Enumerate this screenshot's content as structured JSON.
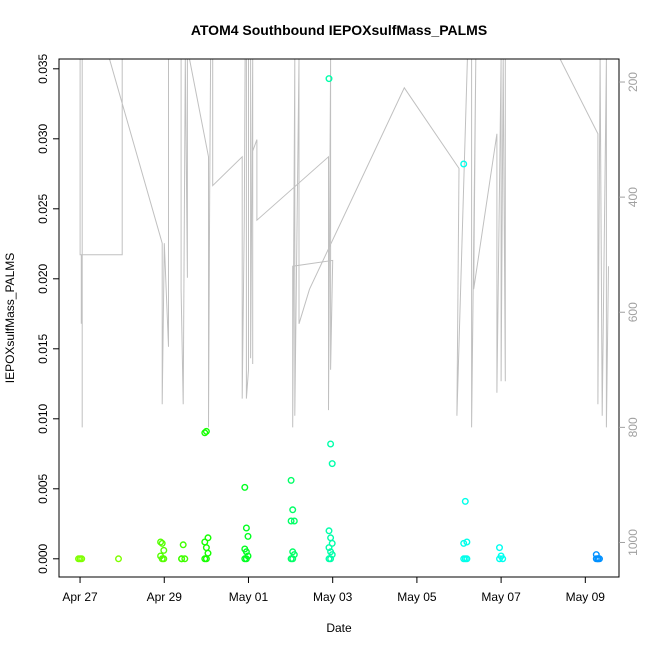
{
  "chart_data": {
    "type": "scatter",
    "title": "ATOM4 Southbound IEPOXsulfMass_PALMS",
    "xlabel": "Date",
    "ylabel": "IEPOXsulfMass_PALMS",
    "x_ticks": [
      "Apr 27",
      "Apr 29",
      "May 01",
      "May 03",
      "May 05",
      "May 07",
      "May 09"
    ],
    "y_ticks": [
      "0.000",
      "0.005",
      "0.010",
      "0.015",
      "0.020",
      "0.025",
      "0.030",
      "0.035"
    ],
    "y2_ticks": [
      "200",
      "400",
      "600",
      "800",
      "1000"
    ],
    "xlim_days": [
      -0.5,
      12.8
    ],
    "ylim": [
      -0.0013,
      0.0357
    ],
    "y2lim": [
      1060,
      160
    ],
    "grid": false,
    "colors": {
      "axis": "#000000",
      "altitude_line": "#c0c0c0",
      "altitude_axis": "#a0a0a0"
    },
    "series": [
      {
        "day": 0.0,
        "color": "#7fff00",
        "values": [
          0.0,
          0.0,
          0.0
        ]
      },
      {
        "day": 0.95,
        "color": "#7fff00",
        "values": [
          0.0
        ]
      },
      {
        "day": 1.95,
        "color": "#55ff00",
        "values": [
          0.0012,
          0.0011,
          0.0006,
          0.0002,
          0.0,
          0.0
        ]
      },
      {
        "day": 2.45,
        "color": "#40ff00",
        "values": [
          0.0,
          0.001,
          0.0,
          0.0
        ]
      },
      {
        "day": 3.0,
        "color": "#15ff00",
        "values": [
          0.009,
          0.0091,
          0.0015,
          0.0012,
          0.0008,
          0.0004,
          0.0,
          0.0
        ]
      },
      {
        "day": 3.95,
        "color": "#00ff20",
        "values": [
          0.0051,
          0.0022,
          0.0016,
          0.0007,
          0.0005,
          0.0002,
          0.0,
          0.0
        ]
      },
      {
        "day": 5.05,
        "color": "#00ff66",
        "values": [
          0.0056,
          0.0035,
          0.0027,
          0.0027,
          0.0005,
          0.0003,
          0.0,
          0.0
        ]
      },
      {
        "day": 5.95,
        "color": "#00ffaa",
        "values": [
          0.0343,
          0.0082,
          0.0068,
          0.002,
          0.0015,
          0.0011,
          0.0008,
          0.0005,
          0.0003,
          0.0,
          0.0
        ]
      },
      {
        "day": 9.15,
        "color": "#00ffea",
        "values": [
          0.0282,
          0.0041,
          0.0012,
          0.0011,
          0.0,
          0.0,
          0.0
        ]
      },
      {
        "day": 10.0,
        "color": "#00fff0",
        "values": [
          0.0008,
          0.0002,
          0.0,
          0.0
        ]
      },
      {
        "day": 12.3,
        "color": "#0090ff",
        "values": [
          0.0003,
          0.0,
          0.0,
          0.0,
          0.0
        ]
      }
    ],
    "altitude_track": [
      [
        0.0,
        160
      ],
      [
        0.0,
        500
      ],
      [
        0.03,
        500
      ],
      [
        0.03,
        620
      ],
      [
        0.03,
        500
      ],
      [
        1.0,
        500
      ],
      [
        1.0,
        160
      ],
      [
        0.05,
        160
      ],
      [
        0.05,
        800
      ],
      [
        0.05,
        160
      ],
      [
        0.7,
        160
      ],
      [
        1.95,
        480
      ],
      [
        1.95,
        760
      ],
      [
        2.0,
        480
      ],
      [
        2.1,
        660
      ],
      [
        2.1,
        160
      ],
      [
        2.4,
        160
      ],
      [
        2.4,
        560
      ],
      [
        2.45,
        760
      ],
      [
        2.5,
        160
      ],
      [
        2.55,
        540
      ],
      [
        2.55,
        160
      ],
      [
        2.6,
        160
      ],
      [
        3.05,
        330
      ],
      [
        3.05,
        800
      ],
      [
        3.08,
        390
      ],
      [
        3.1,
        160
      ],
      [
        3.15,
        160
      ],
      [
        3.15,
        380
      ],
      [
        3.85,
        330
      ],
      [
        3.85,
        750
      ],
      [
        3.9,
        440
      ],
      [
        3.92,
        160
      ],
      [
        3.95,
        160
      ],
      [
        3.95,
        750
      ],
      [
        4.0,
        700
      ],
      [
        4.0,
        160
      ],
      [
        4.05,
        160
      ],
      [
        4.05,
        680
      ],
      [
        4.1,
        160
      ],
      [
        4.1,
        690
      ],
      [
        4.1,
        320
      ],
      [
        4.2,
        300
      ],
      [
        4.2,
        440
      ],
      [
        5.9,
        330
      ],
      [
        5.9,
        770
      ],
      [
        5.95,
        160
      ],
      [
        5.95,
        160
      ],
      [
        5.95,
        700
      ],
      [
        6.0,
        510
      ],
      [
        5.05,
        520
      ],
      [
        5.05,
        800
      ],
      [
        5.1,
        160
      ],
      [
        5.1,
        780
      ],
      [
        5.2,
        160
      ],
      [
        5.2,
        620
      ],
      [
        5.45,
        560
      ],
      [
        7.7,
        210
      ],
      [
        9.0,
        350
      ],
      [
        8.95,
        780
      ],
      [
        9.2,
        160
      ],
      [
        9.3,
        160
      ],
      [
        9.3,
        800
      ],
      [
        9.4,
        160
      ],
      [
        9.35,
        560
      ],
      [
        9.9,
        290
      ],
      [
        9.9,
        740
      ],
      [
        10.0,
        160
      ],
      [
        10.0,
        720
      ],
      [
        10.05,
        160
      ],
      [
        10.1,
        720
      ],
      [
        10.1,
        160
      ],
      [
        11.4,
        160
      ],
      [
        12.3,
        290
      ],
      [
        12.3,
        760
      ],
      [
        12.35,
        160
      ],
      [
        12.4,
        780
      ],
      [
        12.5,
        160
      ],
      [
        12.5,
        800
      ],
      [
        12.55,
        520
      ]
    ]
  }
}
